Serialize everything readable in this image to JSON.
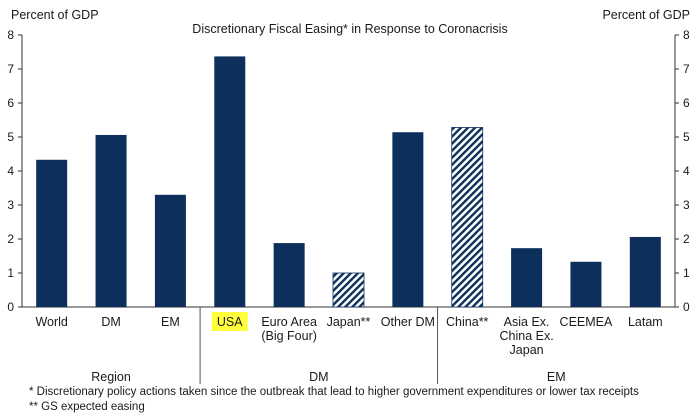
{
  "chart_data": {
    "type": "bar",
    "title": "Discretionary Fiscal Easing* in Response to Coronacrisis",
    "ylabel_left": "Percent of GDP",
    "ylabel_right": "Percent of GDP",
    "ylim": [
      0,
      8
    ],
    "yticks": [
      0,
      1,
      2,
      3,
      4,
      5,
      6,
      7,
      8
    ],
    "grid": false,
    "bar_color": "#0d2f5c",
    "highlight_color": "#ffff3c",
    "categories": [
      {
        "label": "World",
        "value": 4.33,
        "style": "solid"
      },
      {
        "label": "DM",
        "value": 5.06,
        "style": "solid"
      },
      {
        "label": "EM",
        "value": 3.3,
        "style": "solid"
      },
      {
        "label": "USA",
        "value": 7.37,
        "style": "solid",
        "highlight": true
      },
      {
        "label": "Euro Area\n(Big Four)",
        "value": 1.88,
        "style": "solid"
      },
      {
        "label": "Japan**",
        "value": 1.0,
        "style": "hatched"
      },
      {
        "label": "Other DM",
        "value": 5.14,
        "style": "solid"
      },
      {
        "label": "China**",
        "value": 5.28,
        "style": "hatched"
      },
      {
        "label": "Asia Ex.\nChina Ex.\nJapan",
        "value": 1.73,
        "style": "solid"
      },
      {
        "label": "CEEMEA",
        "value": 1.33,
        "style": "solid"
      },
      {
        "label": "Latam",
        "value": 2.06,
        "style": "solid"
      }
    ],
    "groups": [
      {
        "label": "Region",
        "start": 0,
        "end": 2
      },
      {
        "label": "DM",
        "start": 3,
        "end": 6
      },
      {
        "label": "EM",
        "start": 7,
        "end": 10
      }
    ],
    "footnotes": [
      "* Discretionary policy actions taken since the outbreak that lead to higher government expenditures or lower tax receipts",
      "** GS expected easing"
    ]
  }
}
